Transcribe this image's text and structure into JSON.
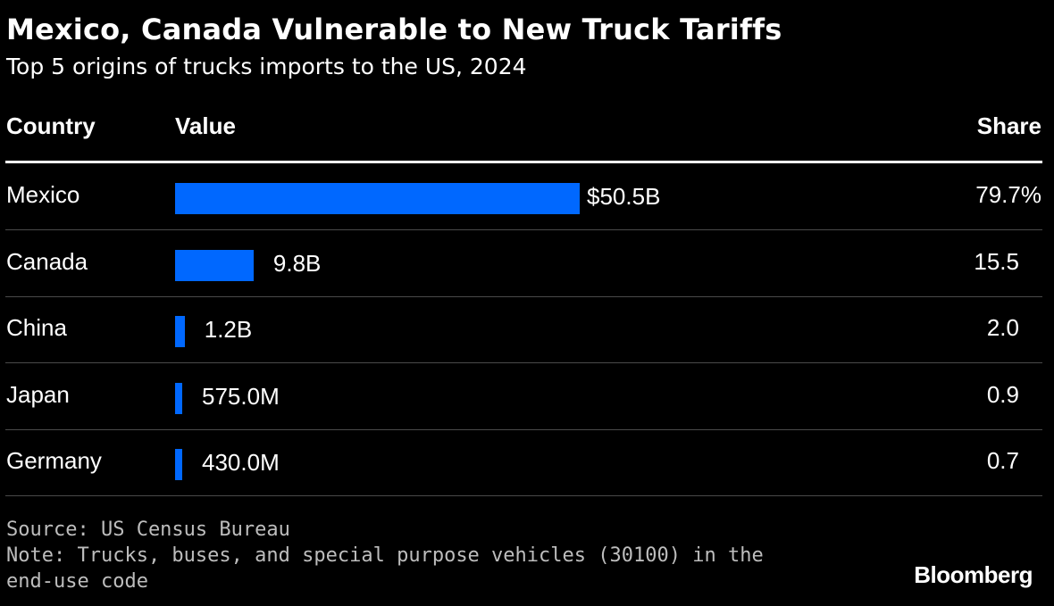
{
  "chart_data": {
    "type": "table",
    "title": "Mexico, Canada Vulnerable to New Truck Tariffs",
    "subtitle": "Top 5 origins of trucks imports to the US, 2024",
    "columns": [
      "Country",
      "Value",
      "Share"
    ],
    "rows": [
      {
        "country": "Mexico",
        "value": 50.5,
        "value_label": "$50.5B",
        "share": "79.7%"
      },
      {
        "country": "Canada",
        "value": 9.8,
        "value_label": "9.8B",
        "share": "15.5"
      },
      {
        "country": "China",
        "value": 1.2,
        "value_label": "1.2B",
        "share": "2.0"
      },
      {
        "country": "Japan",
        "value": 0.575,
        "value_label": "575.0M",
        "share": "0.9"
      },
      {
        "country": "Germany",
        "value": 0.43,
        "value_label": "430.0M",
        "share": "0.7"
      }
    ],
    "bar_color": "#0068ff",
    "source": "Source: US Census Bureau",
    "note": "Note: Trucks, buses, and special purpose vehicles (30100) in the end-use code"
  },
  "brand": "Bloomberg"
}
